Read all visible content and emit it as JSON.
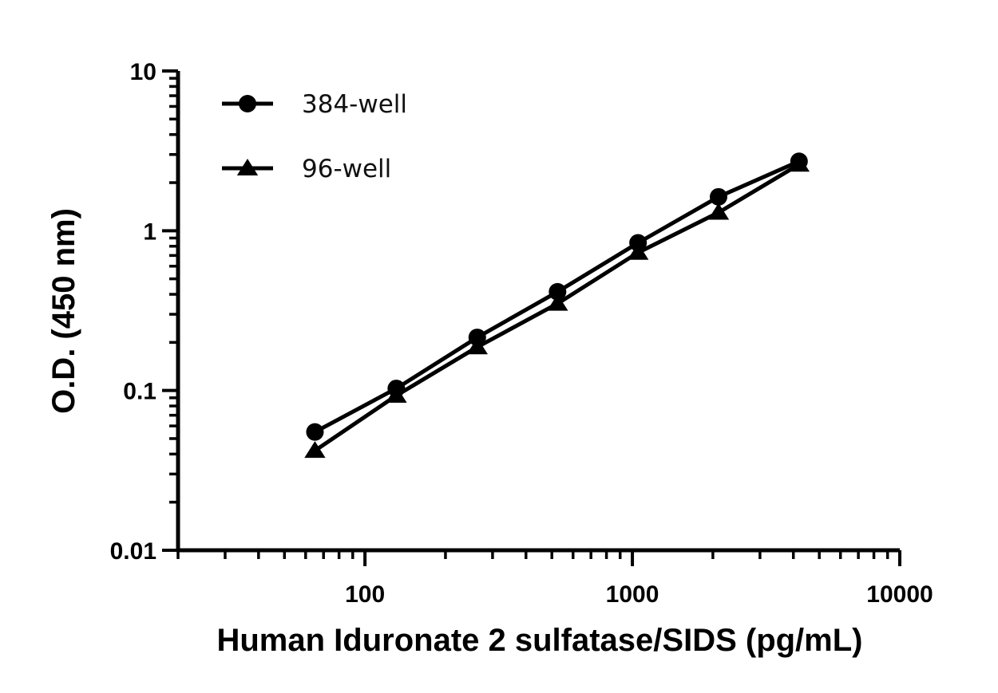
{
  "chart_data": {
    "type": "line",
    "title": "",
    "xlabel": "Human Iduronate 2 sulfatase/SIDS (pg/mL)",
    "ylabel": "O.D. (450 nm)",
    "xscale": "log",
    "yscale": "log",
    "xlim": [
      20,
      10000
    ],
    "ylim": [
      0.01,
      10
    ],
    "xticks": [
      100,
      1000,
      10000
    ],
    "xtick_labels": [
      "100",
      "1000",
      "10000"
    ],
    "yticks": [
      0.01,
      0.1,
      1,
      10
    ],
    "ytick_labels": [
      "0.01",
      "0.1",
      "1",
      "10"
    ],
    "grid": false,
    "legend_position": "top-left",
    "series": [
      {
        "name": "384-well",
        "marker": "circle",
        "color": "#000000",
        "x": [
          65,
          131,
          263,
          525,
          1050,
          2100,
          4200
        ],
        "y": [
          0.055,
          0.103,
          0.215,
          0.415,
          0.84,
          1.63,
          2.72
        ]
      },
      {
        "name": "96-well",
        "marker": "triangle",
        "color": "#000000",
        "x": [
          65,
          131,
          263,
          525,
          1050,
          2100,
          4200
        ],
        "y": [
          0.042,
          0.093,
          0.187,
          0.35,
          0.73,
          1.3,
          2.6
        ]
      }
    ]
  }
}
